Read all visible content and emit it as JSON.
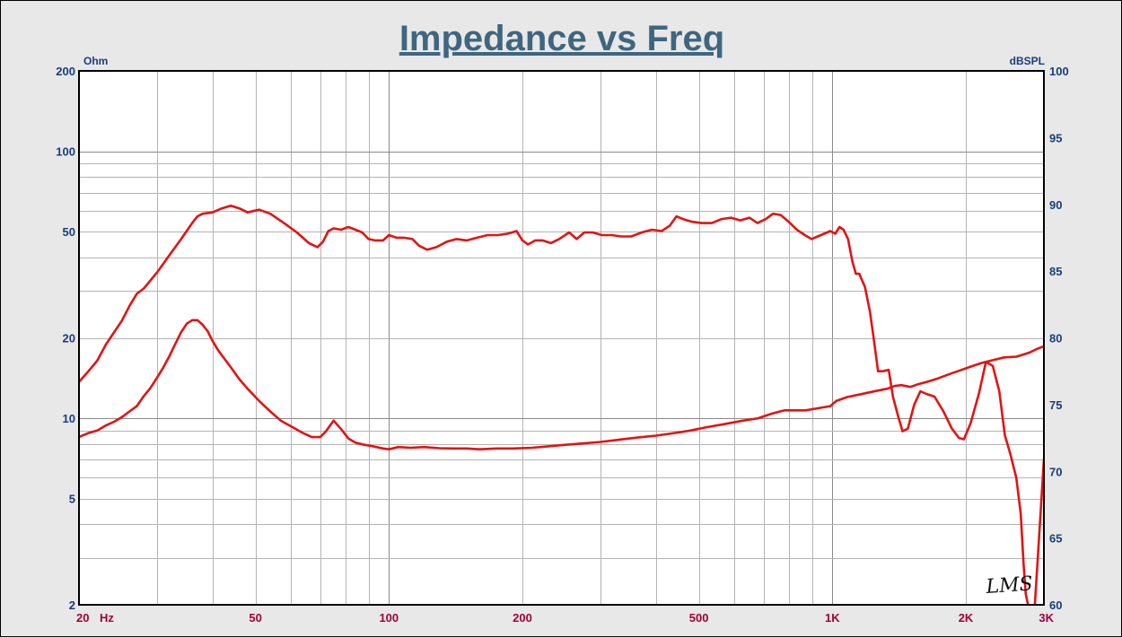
{
  "chart_data": {
    "type": "line",
    "title": "Impedance vs Freq",
    "x_scale": "log",
    "xlim": [
      20,
      3000
    ],
    "x_ticks": [
      {
        "value": 20,
        "label": "20"
      },
      {
        "value": 50,
        "label": "50"
      },
      {
        "value": 100,
        "label": "100"
      },
      {
        "value": 200,
        "label": "200"
      },
      {
        "value": 500,
        "label": "500"
      },
      {
        "value": 1000,
        "label": "1K"
      },
      {
        "value": 2000,
        "label": "2K"
      },
      {
        "value": 3000,
        "label": "3K"
      }
    ],
    "x_unit": "Hz",
    "y_left": {
      "unit": "Ohm",
      "scale": "log",
      "ylim": [
        2,
        200
      ],
      "ticks": [
        {
          "value": 200,
          "label": "200"
        },
        {
          "value": 100,
          "label": "100"
        },
        {
          "value": 50,
          "label": "50"
        },
        {
          "value": 20,
          "label": "20"
        },
        {
          "value": 10,
          "label": "10"
        },
        {
          "value": 5,
          "label": "5"
        },
        {
          "value": 2,
          "label": "2"
        }
      ]
    },
    "y_right": {
      "unit": "dBSPL",
      "scale": "linear",
      "ylim": [
        60,
        100
      ],
      "ticks": [
        {
          "value": 100,
          "label": "100"
        },
        {
          "value": 95,
          "label": "95"
        },
        {
          "value": 90,
          "label": "90"
        },
        {
          "value": 85,
          "label": "85"
        },
        {
          "value": 80,
          "label": "80"
        },
        {
          "value": 75,
          "label": "75"
        },
        {
          "value": 70,
          "label": "70"
        },
        {
          "value": 65,
          "label": "65"
        },
        {
          "value": 60,
          "label": "60"
        }
      ]
    },
    "grid": true,
    "series": [
      {
        "axis": "right",
        "color": "#e11414",
        "points": [
          [
            20,
            76.7
          ],
          [
            21,
            77.5
          ],
          [
            22,
            78.3
          ],
          [
            23,
            79.5
          ],
          [
            25,
            81.3
          ],
          [
            26,
            82.4
          ],
          [
            27,
            83.3
          ],
          [
            28,
            83.7
          ],
          [
            30,
            84.9
          ],
          [
            32,
            86.2
          ],
          [
            34,
            87.4
          ],
          [
            36,
            88.6
          ],
          [
            37,
            89.1
          ],
          [
            38,
            89.3
          ],
          [
            40,
            89.4
          ],
          [
            42,
            89.7
          ],
          [
            44,
            89.9
          ],
          [
            46,
            89.7
          ],
          [
            48,
            89.4
          ],
          [
            51,
            89.6
          ],
          [
            54,
            89.3
          ],
          [
            58,
            88.6
          ],
          [
            62,
            87.9
          ],
          [
            66,
            87.1
          ],
          [
            69,
            86.8
          ],
          [
            71,
            87.2
          ],
          [
            73,
            88.0
          ],
          [
            75,
            88.2
          ],
          [
            78,
            88.1
          ],
          [
            81,
            88.3
          ],
          [
            84,
            88.1
          ],
          [
            87,
            87.9
          ],
          [
            90,
            87.4
          ],
          [
            93,
            87.3
          ],
          [
            97,
            87.3
          ],
          [
            100,
            87.7
          ],
          [
            104,
            87.5
          ],
          [
            108,
            87.5
          ],
          [
            113,
            87.4
          ],
          [
            117,
            86.9
          ],
          [
            122,
            86.6
          ],
          [
            128,
            86.8
          ],
          [
            135,
            87.2
          ],
          [
            142,
            87.4
          ],
          [
            150,
            87.3
          ],
          [
            158,
            87.5
          ],
          [
            167,
            87.7
          ],
          [
            176,
            87.7
          ],
          [
            185,
            87.8
          ],
          [
            194,
            88.0
          ],
          [
            200,
            87.3
          ],
          [
            206,
            87.0
          ],
          [
            214,
            87.3
          ],
          [
            222,
            87.3
          ],
          [
            232,
            87.1
          ],
          [
            242,
            87.4
          ],
          [
            255,
            87.9
          ],
          [
            265,
            87.4
          ],
          [
            276,
            87.9
          ],
          [
            288,
            87.9
          ],
          [
            302,
            87.7
          ],
          [
            318,
            87.7
          ],
          [
            334,
            87.6
          ],
          [
            352,
            87.6
          ],
          [
            372,
            87.9
          ],
          [
            392,
            88.1
          ],
          [
            412,
            88.0
          ],
          [
            430,
            88.4
          ],
          [
            445,
            89.1
          ],
          [
            460,
            88.9
          ],
          [
            482,
            88.7
          ],
          [
            507,
            88.6
          ],
          [
            535,
            88.6
          ],
          [
            563,
            88.9
          ],
          [
            591,
            89.0
          ],
          [
            620,
            88.8
          ],
          [
            650,
            89.0
          ],
          [
            678,
            88.6
          ],
          [
            708,
            88.9
          ],
          [
            735,
            89.3
          ],
          [
            765,
            89.2
          ],
          [
            797,
            88.7
          ],
          [
            832,
            88.1
          ],
          [
            867,
            87.7
          ],
          [
            897,
            87.4
          ],
          [
            927,
            87.6
          ],
          [
            958,
            87.8
          ],
          [
            990,
            88.0
          ],
          [
            1015,
            87.8
          ],
          [
            1038,
            88.3
          ],
          [
            1060,
            88.1
          ],
          [
            1085,
            87.4
          ],
          [
            1110,
            85.7
          ],
          [
            1130,
            84.8
          ],
          [
            1150,
            84.8
          ],
          [
            1185,
            83.8
          ],
          [
            1215,
            82.0
          ],
          [
            1240,
            79.9
          ],
          [
            1268,
            77.5
          ],
          [
            1300,
            77.5
          ],
          [
            1340,
            77.6
          ],
          [
            1370,
            75.6
          ],
          [
            1405,
            74.2
          ],
          [
            1440,
            73.0
          ],
          [
            1480,
            73.2
          ],
          [
            1530,
            75.0
          ],
          [
            1580,
            76.0
          ],
          [
            1630,
            75.8
          ],
          [
            1700,
            75.6
          ],
          [
            1780,
            74.5
          ],
          [
            1860,
            73.2
          ],
          [
            1930,
            72.5
          ],
          [
            1980,
            72.4
          ],
          [
            2050,
            73.6
          ],
          [
            2140,
            75.8
          ],
          [
            2220,
            78.2
          ],
          [
            2300,
            77.9
          ],
          [
            2380,
            76.0
          ],
          [
            2450,
            72.7
          ],
          [
            2520,
            71.3
          ],
          [
            2600,
            69.5
          ],
          [
            2660,
            66.8
          ],
          [
            2700,
            63.0
          ],
          [
            2730,
            60.8
          ],
          [
            2770,
            59.8
          ],
          [
            2820,
            59.6
          ],
          [
            2860,
            59.8
          ],
          [
            2900,
            63.0
          ],
          [
            2950,
            67.0
          ],
          [
            3000,
            70.9
          ]
        ]
      },
      {
        "axis": "left",
        "color": "#e11414",
        "points": [
          [
            20,
            8.5
          ],
          [
            21,
            8.8
          ],
          [
            22,
            9.0
          ],
          [
            23,
            9.4
          ],
          [
            24,
            9.7
          ],
          [
            25,
            10.1
          ],
          [
            26,
            10.6
          ],
          [
            27,
            11.1
          ],
          [
            28,
            12.1
          ],
          [
            29,
            13.0
          ],
          [
            30,
            14.2
          ],
          [
            31,
            15.5
          ],
          [
            32,
            17.1
          ],
          [
            33,
            19.0
          ],
          [
            34,
            21.0
          ],
          [
            35,
            22.6
          ],
          [
            36,
            23.3
          ],
          [
            37,
            23.3
          ],
          [
            38,
            22.4
          ],
          [
            39,
            21.2
          ],
          [
            40,
            19.5
          ],
          [
            41,
            18.2
          ],
          [
            42,
            17.2
          ],
          [
            44,
            15.5
          ],
          [
            46,
            14.0
          ],
          [
            48,
            12.9
          ],
          [
            51,
            11.6
          ],
          [
            54,
            10.6
          ],
          [
            57,
            9.8
          ],
          [
            61,
            9.2
          ],
          [
            64,
            8.8
          ],
          [
            67,
            8.5
          ],
          [
            70,
            8.5
          ],
          [
            72,
            8.9
          ],
          [
            75,
            9.8
          ],
          [
            78,
            9.1
          ],
          [
            81,
            8.4
          ],
          [
            84,
            8.1
          ],
          [
            88,
            7.95
          ],
          [
            92,
            7.85
          ],
          [
            97,
            7.7
          ],
          [
            100,
            7.65
          ],
          [
            105,
            7.8
          ],
          [
            112,
            7.75
          ],
          [
            120,
            7.8
          ],
          [
            130,
            7.72
          ],
          [
            140,
            7.7
          ],
          [
            150,
            7.7
          ],
          [
            160,
            7.65
          ],
          [
            175,
            7.7
          ],
          [
            190,
            7.7
          ],
          [
            210,
            7.75
          ],
          [
            230,
            7.85
          ],
          [
            250,
            7.95
          ],
          [
            275,
            8.05
          ],
          [
            300,
            8.15
          ],
          [
            330,
            8.3
          ],
          [
            360,
            8.45
          ],
          [
            400,
            8.6
          ],
          [
            440,
            8.8
          ],
          [
            480,
            9.0
          ],
          [
            520,
            9.25
          ],
          [
            570,
            9.5
          ],
          [
            620,
            9.75
          ],
          [
            680,
            10.0
          ],
          [
            730,
            10.4
          ],
          [
            780,
            10.7
          ],
          [
            820,
            10.7
          ],
          [
            870,
            10.7
          ],
          [
            930,
            10.9
          ],
          [
            990,
            11.1
          ],
          [
            1020,
            11.6
          ],
          [
            1080,
            12.0
          ],
          [
            1160,
            12.3
          ],
          [
            1240,
            12.6
          ],
          [
            1330,
            12.9
          ],
          [
            1380,
            13.2
          ],
          [
            1430,
            13.3
          ],
          [
            1500,
            13.1
          ],
          [
            1560,
            13.4
          ],
          [
            1640,
            13.7
          ],
          [
            1730,
            14.1
          ],
          [
            1830,
            14.6
          ],
          [
            1940,
            15.1
          ],
          [
            2050,
            15.6
          ],
          [
            2170,
            16.1
          ],
          [
            2300,
            16.5
          ],
          [
            2440,
            16.9
          ],
          [
            2600,
            17.0
          ],
          [
            2780,
            17.6
          ],
          [
            2900,
            18.2
          ],
          [
            3000,
            18.6
          ]
        ]
      }
    ]
  },
  "watermark": "LMS"
}
